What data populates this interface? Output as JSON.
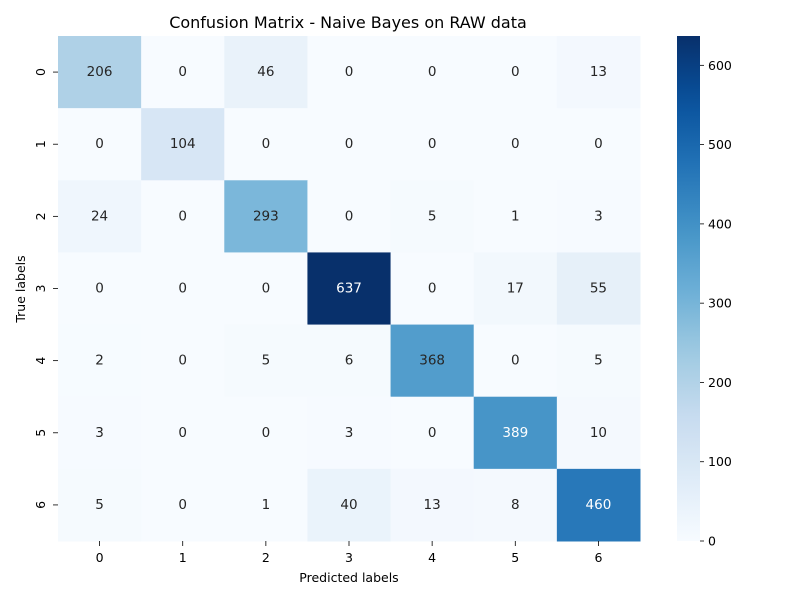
{
  "chart_data": {
    "type": "heatmap",
    "title": "Confusion Matrix - Naive Bayes on RAW data",
    "xlabel": "Predicted labels",
    "ylabel": "True labels",
    "x_categories": [
      "0",
      "1",
      "2",
      "3",
      "4",
      "5",
      "6"
    ],
    "y_categories": [
      "0",
      "1",
      "2",
      "3",
      "4",
      "5",
      "6"
    ],
    "values": [
      [
        206,
        0,
        46,
        0,
        0,
        0,
        13
      ],
      [
        0,
        104,
        0,
        0,
        0,
        0,
        0
      ],
      [
        24,
        0,
        293,
        0,
        5,
        1,
        3
      ],
      [
        0,
        0,
        0,
        637,
        0,
        17,
        55
      ],
      [
        2,
        0,
        5,
        6,
        368,
        0,
        5
      ],
      [
        3,
        0,
        0,
        3,
        0,
        389,
        10
      ],
      [
        5,
        0,
        1,
        40,
        13,
        8,
        460
      ]
    ],
    "colorscale": "Blues",
    "vmin": 0,
    "vmax": 637,
    "colorbar_ticks": [
      0,
      100,
      200,
      300,
      400,
      500,
      600
    ],
    "annotations": true,
    "grid": false
  }
}
